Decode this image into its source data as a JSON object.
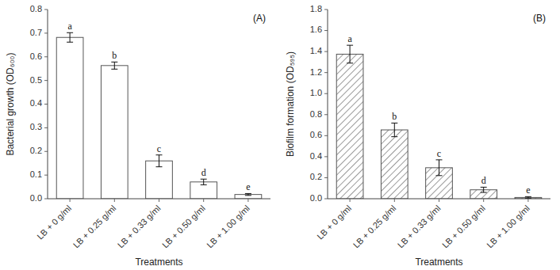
{
  "chart_data": [
    {
      "type": "bar",
      "title": "(A)",
      "categories": [
        "LB + 0 g/ml",
        "LB + 0.25 g/ml",
        "LB + 0.33 g/ml",
        "LB + 0.50 g/ml",
        "LB + 1.00 g/ml"
      ],
      "values": [
        0.682,
        0.563,
        0.16,
        0.071,
        0.018
      ],
      "errors": [
        0.02,
        0.015,
        0.025,
        0.012,
        0.004
      ],
      "annotations": [
        "a",
        "b",
        "c",
        "d",
        "e"
      ],
      "x_label": "Treatments",
      "y_label": "Bacterial growth (OD₆₀₀)",
      "ylim": [
        0,
        0.8
      ],
      "yticks": [
        {
          "value": 0,
          "label": "0.0"
        },
        0.1,
        0.2,
        0.3,
        0.4,
        0.5,
        0.6,
        0.7,
        0.8
      ],
      "color": "#ffffff",
      "grid": false
    },
    {
      "type": "bar",
      "title": "(B)",
      "categories": [
        "LB + 0 g/ml",
        "LB + 0.25 g/ml",
        "LB + 0.33 g/ml",
        "LB + 0.50 g/ml",
        "LB + 1.00 g/ml"
      ],
      "values": [
        1.375,
        0.655,
        0.295,
        0.085,
        0.012
      ],
      "errors": [
        0.085,
        0.065,
        0.075,
        0.025,
        0.008
      ],
      "annotations": [
        "a",
        "b",
        "c",
        "d",
        "e"
      ],
      "x_label": "Treatments",
      "y_label": "Biofilm formation (OD₅₉₅)",
      "ylim": [
        0,
        1.8
      ],
      "yticks": [
        {
          "value": 0,
          "label": "0.0"
        },
        0.2,
        0.4,
        0.6,
        0.8,
        {
          "value": 1,
          "label": "1.0"
        },
        1.2,
        1.4,
        1.6,
        1.8
      ],
      "color": "#ffffff",
      "grid": false
    }
  ]
}
